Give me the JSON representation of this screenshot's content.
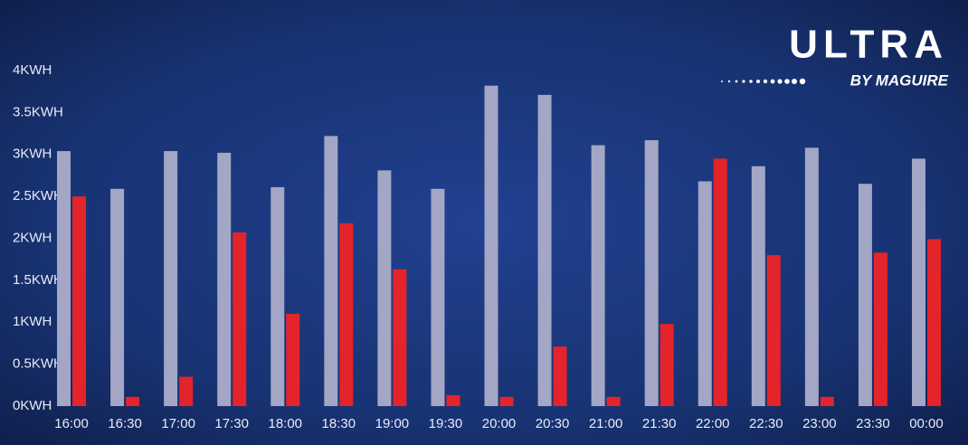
{
  "logo": {
    "title": "ULTRA",
    "subtitle": "BY MAGUIRE"
  },
  "chart_data": {
    "type": "bar",
    "categories": [
      "16:00",
      "16:30",
      "17:00",
      "17:30",
      "18:00",
      "18:30",
      "19:00",
      "19:30",
      "20:00",
      "20:30",
      "21:00",
      "21:30",
      "22:00",
      "22:30",
      "23:00",
      "23:30",
      "00:00"
    ],
    "series": [
      {
        "color": "#a3a6c4",
        "values": [
          3.04,
          2.59,
          3.04,
          3.02,
          2.61,
          3.22,
          2.81,
          2.59,
          3.82,
          3.71,
          3.11,
          3.17,
          2.68,
          2.86,
          3.08,
          2.65,
          2.95
        ]
      },
      {
        "color": "#e3242b",
        "values": [
          2.5,
          0.11,
          0.35,
          2.07,
          1.1,
          2.18,
          1.63,
          0.13,
          0.11,
          0.71,
          0.11,
          0.98,
          2.95,
          1.8,
          0.11,
          1.83,
          1.99
        ]
      }
    ],
    "ylim": [
      0,
      4
    ],
    "yticks": [
      {
        "value": 0,
        "label": "0KWH"
      },
      {
        "value": 0.5,
        "label": "0.5KWH"
      },
      {
        "value": 1,
        "label": "1KWH"
      },
      {
        "value": 1.5,
        "label": "1.5KWH"
      },
      {
        "value": 2,
        "label": "2KWH"
      },
      {
        "value": 2.5,
        "label": "2.5KWH"
      },
      {
        "value": 3,
        "label": "3KWH"
      },
      {
        "value": 3.5,
        "label": "3.5KWH"
      },
      {
        "value": 4,
        "label": "4KWH"
      }
    ],
    "grid": false
  }
}
